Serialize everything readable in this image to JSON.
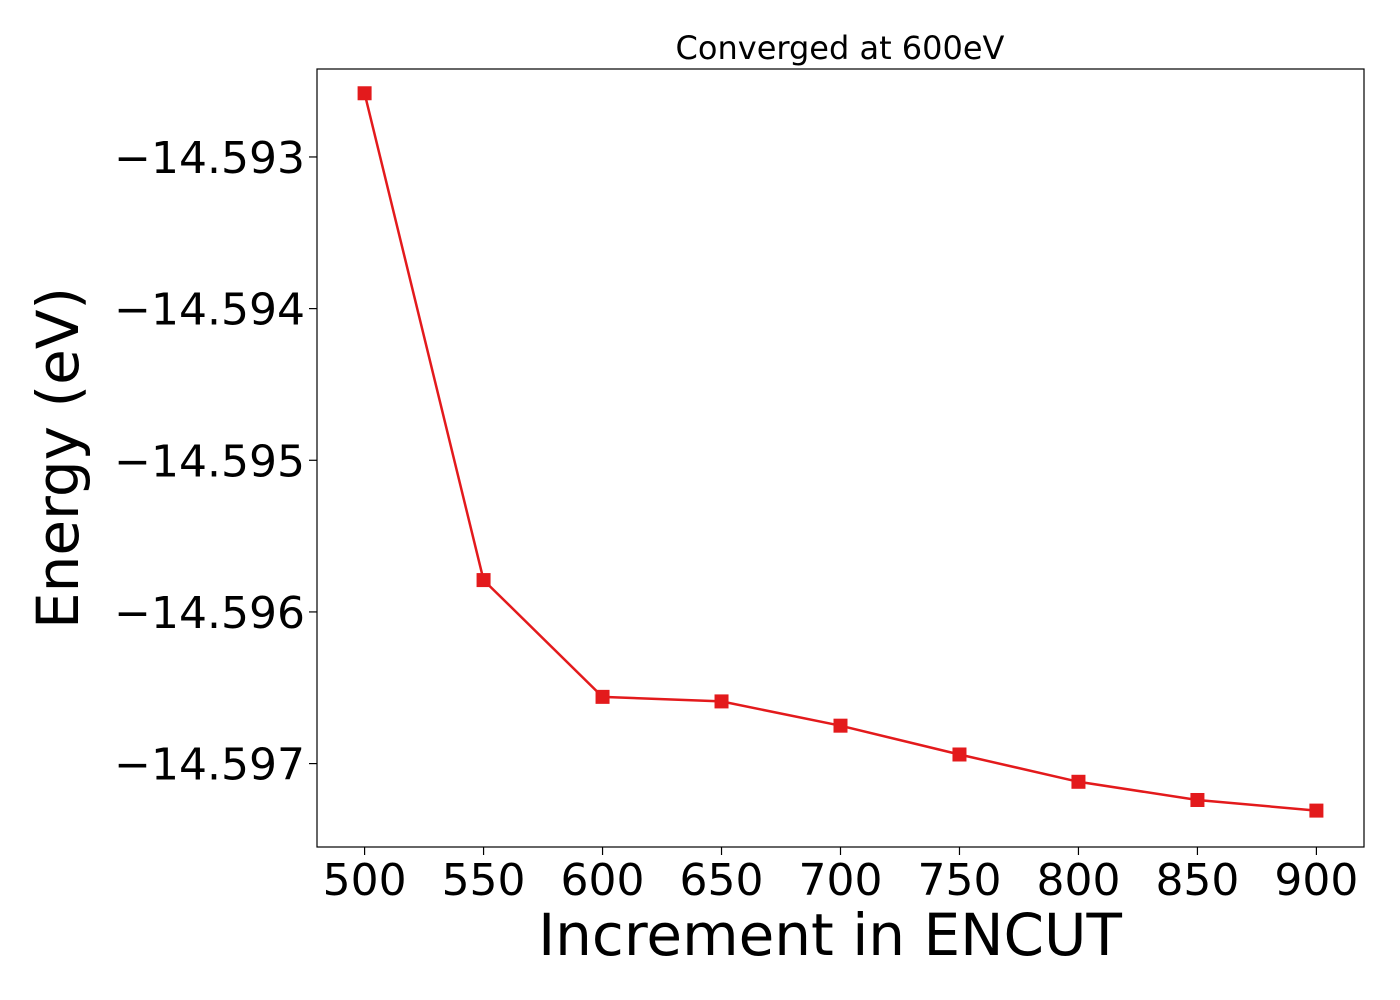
{
  "chart_data": {
    "type": "line",
    "title": "Converged at 600eV",
    "xlabel": "Increment in ENCUT",
    "ylabel": "Energy (eV)",
    "x": [
      500,
      550,
      600,
      650,
      700,
      750,
      800,
      850,
      900
    ],
    "x_ticks": [
      500,
      550,
      600,
      650,
      700,
      750,
      800,
      850,
      900
    ],
    "xlim": [
      480,
      920
    ],
    "y_ticks": [
      -14.593,
      -14.594,
      -14.595,
      -14.596,
      -14.597
    ],
    "y_tick_labels": [
      "−14.593",
      "−14.594",
      "−14.595",
      "−14.596",
      "−14.597"
    ],
    "ylim": [
      -14.59755,
      -14.59242
    ],
    "grid": false,
    "legend": "none",
    "series": [
      {
        "values": [
          -14.59258,
          -14.59579,
          -14.59656,
          -14.59659,
          -14.59675,
          -14.59694,
          -14.59712,
          -14.59724,
          -14.59731
        ],
        "color": "#e31a1c",
        "marker": "square"
      }
    ]
  }
}
